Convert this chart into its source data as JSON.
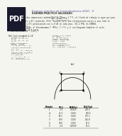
{
  "title": "Examen práctico de termodinámica 2020 - II",
  "bg_color": "#ffffff",
  "pdf_label": "PDF",
  "pdf_bg": "#1a1a2e",
  "pdf_fg": "#ffffff",
  "header_color": "#222222",
  "body_text_color": "#333333",
  "page_bg": "#f5f5f0"
}
